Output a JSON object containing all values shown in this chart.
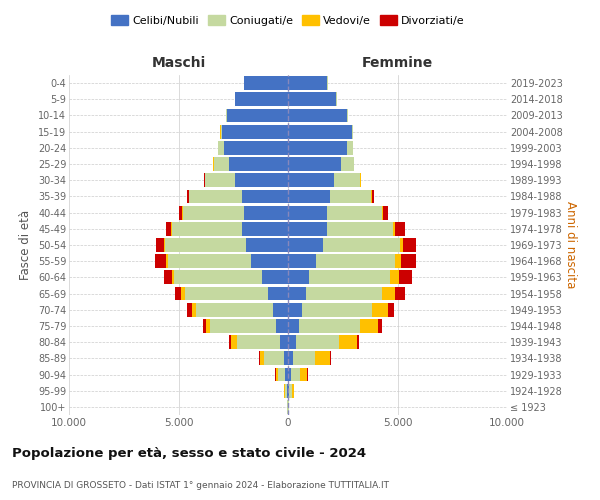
{
  "age_groups": [
    "100+",
    "95-99",
    "90-94",
    "85-89",
    "80-84",
    "75-79",
    "70-74",
    "65-69",
    "60-64",
    "55-59",
    "50-54",
    "45-49",
    "40-44",
    "35-39",
    "30-34",
    "25-29",
    "20-24",
    "15-19",
    "10-14",
    "5-9",
    "0-4"
  ],
  "birth_years": [
    "≤ 1923",
    "1924-1928",
    "1929-1933",
    "1934-1938",
    "1939-1943",
    "1944-1948",
    "1949-1953",
    "1954-1958",
    "1959-1963",
    "1964-1968",
    "1969-1973",
    "1974-1978",
    "1979-1983",
    "1984-1988",
    "1989-1993",
    "1994-1998",
    "1999-2003",
    "2004-2008",
    "2009-2013",
    "2014-2018",
    "2019-2023"
  ],
  "males": {
    "celibi": [
      20,
      50,
      120,
      200,
      350,
      550,
      700,
      900,
      1200,
      1700,
      1900,
      2100,
      2000,
      2100,
      2400,
      2700,
      2900,
      3000,
      2800,
      2400,
      2000
    ],
    "coniugati": [
      30,
      100,
      350,
      900,
      2000,
      3000,
      3500,
      3800,
      4000,
      3800,
      3700,
      3200,
      2800,
      2400,
      1400,
      700,
      300,
      80,
      30,
      20,
      10
    ],
    "vedovi": [
      5,
      30,
      100,
      200,
      250,
      200,
      200,
      200,
      100,
      80,
      50,
      40,
      20,
      10,
      5,
      5,
      5,
      5,
      5,
      5,
      5
    ],
    "divorziati": [
      2,
      10,
      20,
      40,
      80,
      150,
      200,
      280,
      380,
      500,
      380,
      250,
      150,
      80,
      30,
      10,
      5,
      5,
      5,
      5,
      5
    ]
  },
  "females": {
    "nubili": [
      20,
      60,
      130,
      230,
      350,
      500,
      650,
      800,
      950,
      1300,
      1600,
      1800,
      1800,
      1900,
      2100,
      2400,
      2700,
      2900,
      2700,
      2200,
      1800
    ],
    "coniugate": [
      30,
      120,
      400,
      1000,
      2000,
      2800,
      3200,
      3500,
      3700,
      3600,
      3500,
      3000,
      2500,
      1900,
      1200,
      600,
      250,
      70,
      25,
      15,
      10
    ],
    "vedove": [
      10,
      80,
      350,
      700,
      800,
      800,
      700,
      600,
      400,
      250,
      150,
      80,
      50,
      30,
      15,
      10,
      8,
      5,
      5,
      5,
      5
    ],
    "divorziate": [
      2,
      10,
      20,
      50,
      80,
      200,
      280,
      450,
      600,
      700,
      600,
      450,
      200,
      100,
      40,
      15,
      8,
      5,
      5,
      5,
      5
    ]
  },
  "colors": {
    "celibi": "#4472c4",
    "coniugati": "#c5d9a0",
    "vedovi": "#ffc000",
    "divorziati": "#cc0000"
  },
  "xlim": 10000,
  "xticks": [
    -10000,
    -5000,
    0,
    5000,
    10000
  ],
  "xtick_labels": [
    "10.000",
    "5.000",
    "0",
    "5.000",
    "10.000"
  ],
  "title": "Popolazione per età, sesso e stato civile - 2024",
  "subtitle": "PROVINCIA DI GROSSETO - Dati ISTAT 1° gennaio 2024 - Elaborazione TUTTITALIA.IT",
  "ylabel_left": "Fasce di età",
  "ylabel_right": "Anni di nascita",
  "maschi_label": "Maschi",
  "femmine_label": "Femmine",
  "legend_labels": [
    "Celibi/Nubili",
    "Coniugati/e",
    "Vedovi/e",
    "Divorziati/e"
  ],
  "background_color": "#ffffff",
  "grid_color": "#cccccc"
}
